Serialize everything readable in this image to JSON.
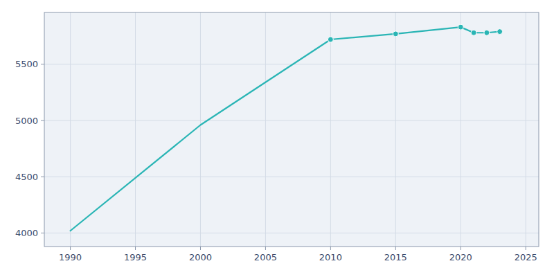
{
  "chart_data": {
    "type": "line",
    "x": [
      1990,
      2000,
      2010,
      2015,
      2020,
      2021,
      2022,
      2023
    ],
    "series": [
      {
        "color": "#2ab5b5",
        "values": [
          4020,
          4960,
          5720,
          5770,
          5830,
          5780,
          5780,
          5790
        ]
      },
      {
        "color": "#2ab5b5",
        "values": [
          null,
          null,
          5720,
          5770,
          5830,
          5780,
          5780,
          5790
        ],
        "marker": "circle",
        "line_style": "none"
      }
    ],
    "xlim": [
      1988,
      2026
    ],
    "ylim": [
      3880,
      5960
    ],
    "xticks": [
      1990,
      1995,
      2000,
      2005,
      2010,
      2015,
      2020,
      2025
    ],
    "yticks": [
      4000,
      4500,
      5000,
      5500
    ],
    "grid": true
  }
}
